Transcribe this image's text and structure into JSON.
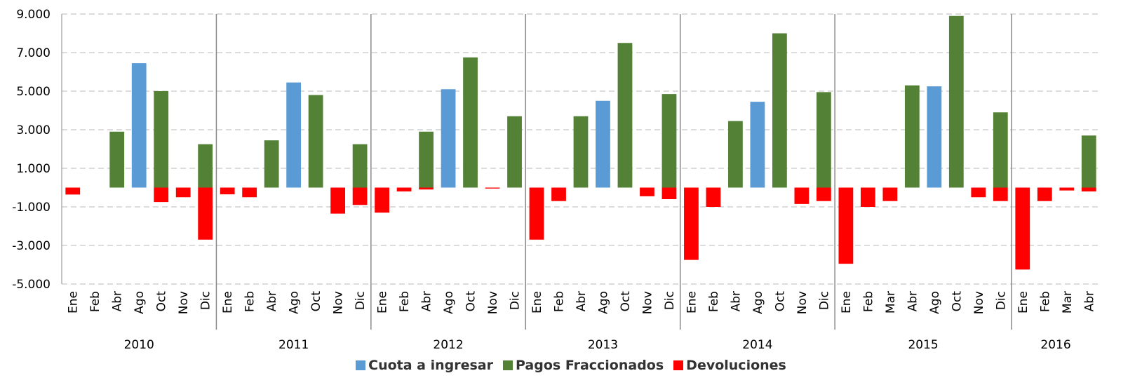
{
  "chart_data": {
    "type": "bar",
    "categories": [
      "Ene",
      "Feb",
      "Abr",
      "Ago",
      "Oct",
      "Nov",
      "Dic",
      "Ene",
      "Feb",
      "Abr",
      "Ago",
      "Oct",
      "Nov",
      "Dic",
      "Ene",
      "Feb",
      "Abr",
      "Ago",
      "Oct",
      "Nov",
      "Dic",
      "Ene",
      "Feb",
      "Abr",
      "Ago",
      "Oct",
      "Nov",
      "Dic",
      "Ene",
      "Feb",
      "Abr",
      "Ago",
      "Oct",
      "Nov",
      "Dic",
      "Ene",
      "Feb",
      "Mar",
      "Abr",
      "Ago",
      "Oct",
      "Nov",
      "Dic",
      "Ene",
      "Feb",
      "Mar",
      "Abr"
    ],
    "year_groups": [
      {
        "label": "2010",
        "size": 7
      },
      {
        "label": "2011",
        "size": 7
      },
      {
        "label": "2012",
        "size": 7
      },
      {
        "label": "2013",
        "size": 7
      },
      {
        "label": "2014",
        "size": 7
      },
      {
        "label": "2015",
        "size": 8
      },
      {
        "label": "2016",
        "size": 4
      }
    ],
    "series": [
      {
        "name": "Cuota a ingresar",
        "color": "#5b9bd5",
        "values": [
          null,
          null,
          null,
          6450,
          null,
          null,
          null,
          null,
          null,
          null,
          5450,
          null,
          null,
          null,
          null,
          null,
          null,
          5100,
          null,
          null,
          null,
          null,
          null,
          null,
          4500,
          null,
          null,
          null,
          null,
          null,
          null,
          4450,
          null,
          null,
          null,
          null,
          null,
          null,
          null,
          5250,
          null,
          null,
          null,
          null,
          null,
          null,
          null
        ]
      },
      {
        "name": "Pagos Fraccionados",
        "color": "#538135",
        "values": [
          null,
          null,
          2900,
          null,
          5000,
          null,
          2250,
          null,
          null,
          2450,
          null,
          4800,
          null,
          2250,
          null,
          null,
          2900,
          null,
          6750,
          null,
          3700,
          null,
          null,
          3700,
          null,
          7500,
          null,
          4850,
          null,
          null,
          3450,
          null,
          8000,
          null,
          4950,
          null,
          null,
          null,
          5300,
          null,
          8900,
          null,
          3900,
          null,
          null,
          null,
          2700
        ]
      },
      {
        "name": "Devoluciones",
        "color": "#ff0000",
        "values": [
          -360,
          null,
          null,
          null,
          -750,
          -500,
          -2700,
          -350,
          -500,
          null,
          null,
          null,
          -1350,
          -900,
          -1300,
          -200,
          -100,
          null,
          null,
          -50,
          null,
          -2700,
          -700,
          null,
          null,
          null,
          -450,
          -600,
          -3750,
          -1000,
          null,
          null,
          null,
          -850,
          -700,
          -3950,
          -1000,
          -700,
          null,
          null,
          null,
          -500,
          -700,
          -4250,
          -700,
          -150,
          -200
        ]
      }
    ],
    "ylim": [
      -5000,
      9000
    ],
    "yticks": [
      {
        "value": -5000,
        "label": "-5.000"
      },
      {
        "value": -3000,
        "label": "-3.000"
      },
      {
        "value": -1000,
        "label": "-1.000"
      },
      {
        "value": 1000,
        "label": "1.000"
      },
      {
        "value": 3000,
        "label": "3.000"
      },
      {
        "value": 5000,
        "label": "5.000"
      },
      {
        "value": 7000,
        "label": "7.000"
      },
      {
        "value": 9000,
        "label": "9.000"
      }
    ],
    "grid": true
  }
}
